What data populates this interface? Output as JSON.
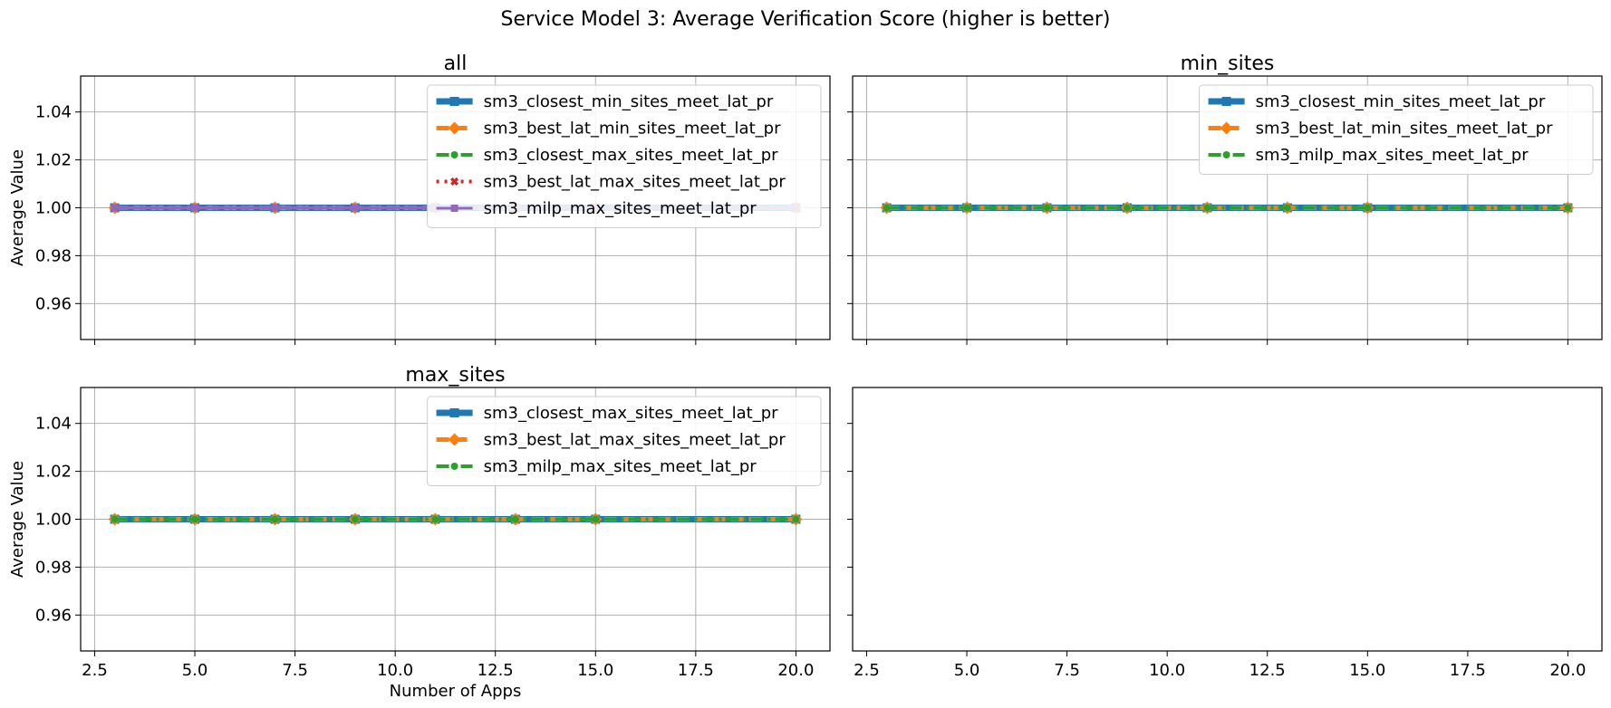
{
  "figure": {
    "title": "Service Model 3: Average Verification Score (higher is better)"
  },
  "colors": {
    "blue": "#1f77b4",
    "orange": "#ff7f0e",
    "green": "#2ca02c",
    "red": "#d62728",
    "purple": "#9467bd",
    "grid": "#b0b0b0"
  },
  "chart_data": [
    {
      "type": "line",
      "title": "all",
      "xlabel": "",
      "ylabel": "Average Value",
      "xlim": [
        2.15,
        20.85
      ],
      "ylim": [
        0.945,
        1.055
      ],
      "xticks": [
        2.5,
        5.0,
        7.5,
        10.0,
        12.5,
        15.0,
        17.5,
        20.0
      ],
      "xtick_labels": [
        "2.5",
        "5.0",
        "7.5",
        "10.0",
        "12.5",
        "15.0",
        "17.5",
        "20.0"
      ],
      "show_xtick_labels": false,
      "yticks": [
        0.96,
        0.98,
        1.0,
        1.02,
        1.04
      ],
      "ytick_labels": [
        "0.96",
        "0.98",
        "1.00",
        "1.02",
        "1.04"
      ],
      "show_ytick_labels": true,
      "grid": true,
      "legend_position": "upper-right",
      "x": [
        3,
        5,
        7,
        9,
        11,
        13,
        15,
        20
      ],
      "series": [
        {
          "name": "sm3_closest_min_sites_meet_lat_pr",
          "color": "#1f77b4",
          "marker": "square",
          "linestyle": "solid",
          "values": [
            1,
            1,
            1,
            1,
            1,
            1,
            1,
            1
          ]
        },
        {
          "name": "sm3_best_lat_min_sites_meet_lat_pr",
          "color": "#ff7f0e",
          "marker": "diamond",
          "linestyle": "dashed",
          "values": [
            1,
            1,
            1,
            1,
            1,
            1,
            1,
            1
          ]
        },
        {
          "name": "sm3_closest_max_sites_meet_lat_pr",
          "color": "#2ca02c",
          "marker": "circle",
          "linestyle": "dashdot",
          "values": [
            1,
            1,
            1,
            1,
            1,
            1,
            1,
            1
          ]
        },
        {
          "name": "sm3_best_lat_max_sites_meet_lat_pr",
          "color": "#d62728",
          "marker": "x",
          "linestyle": "dotted",
          "values": [
            1,
            1,
            1,
            1,
            1,
            1,
            1,
            1
          ]
        },
        {
          "name": "sm3_milp_max_sites_meet_lat_pr",
          "color": "#9467bd",
          "marker": "square",
          "linestyle": "solid",
          "values": [
            1,
            1,
            1,
            1,
            1,
            1,
            1,
            1
          ]
        }
      ]
    },
    {
      "type": "line",
      "title": "min_sites",
      "xlabel": "",
      "ylabel": "",
      "xlim": [
        2.15,
        20.85
      ],
      "ylim": [
        0.945,
        1.055
      ],
      "xticks": [
        2.5,
        5.0,
        7.5,
        10.0,
        12.5,
        15.0,
        17.5,
        20.0
      ],
      "xtick_labels": [
        "2.5",
        "5.0",
        "7.5",
        "10.0",
        "12.5",
        "15.0",
        "17.5",
        "20.0"
      ],
      "show_xtick_labels": false,
      "yticks": [
        0.96,
        0.98,
        1.0,
        1.02,
        1.04
      ],
      "ytick_labels": [
        "0.96",
        "0.98",
        "1.00",
        "1.02",
        "1.04"
      ],
      "show_ytick_labels": false,
      "grid": true,
      "legend_position": "upper-right",
      "x": [
        3,
        5,
        7,
        9,
        11,
        13,
        15,
        20
      ],
      "series": [
        {
          "name": "sm3_closest_min_sites_meet_lat_pr",
          "color": "#1f77b4",
          "marker": "square",
          "linestyle": "solid",
          "values": [
            1,
            1,
            1,
            1,
            1,
            1,
            1,
            1
          ]
        },
        {
          "name": "sm3_best_lat_min_sites_meet_lat_pr",
          "color": "#ff7f0e",
          "marker": "diamond",
          "linestyle": "dashed",
          "values": [
            1,
            1,
            1,
            1,
            1,
            1,
            1,
            1
          ]
        },
        {
          "name": "sm3_milp_max_sites_meet_lat_pr",
          "color": "#2ca02c",
          "marker": "circle",
          "linestyle": "dashdot",
          "values": [
            1,
            1,
            1,
            1,
            1,
            1,
            1,
            1
          ]
        }
      ]
    },
    {
      "type": "line",
      "title": "max_sites",
      "xlabel": "Number of Apps",
      "ylabel": "Average Value",
      "xlim": [
        2.15,
        20.85
      ],
      "ylim": [
        0.945,
        1.055
      ],
      "xticks": [
        2.5,
        5.0,
        7.5,
        10.0,
        12.5,
        15.0,
        17.5,
        20.0
      ],
      "xtick_labels": [
        "2.5",
        "5.0",
        "7.5",
        "10.0",
        "12.5",
        "15.0",
        "17.5",
        "20.0"
      ],
      "show_xtick_labels": true,
      "yticks": [
        0.96,
        0.98,
        1.0,
        1.02,
        1.04
      ],
      "ytick_labels": [
        "0.96",
        "0.98",
        "1.00",
        "1.02",
        "1.04"
      ],
      "show_ytick_labels": true,
      "grid": true,
      "legend_position": "upper-right",
      "x": [
        3,
        5,
        7,
        9,
        11,
        13,
        15,
        20
      ],
      "series": [
        {
          "name": "sm3_closest_max_sites_meet_lat_pr",
          "color": "#1f77b4",
          "marker": "square",
          "linestyle": "solid",
          "values": [
            1,
            1,
            1,
            1,
            1,
            1,
            1,
            1
          ]
        },
        {
          "name": "sm3_best_lat_max_sites_meet_lat_pr",
          "color": "#ff7f0e",
          "marker": "diamond",
          "linestyle": "dashed",
          "values": [
            1,
            1,
            1,
            1,
            1,
            1,
            1,
            1
          ]
        },
        {
          "name": "sm3_milp_max_sites_meet_lat_pr",
          "color": "#2ca02c",
          "marker": "circle",
          "linestyle": "dashdot",
          "values": [
            1,
            1,
            1,
            1,
            1,
            1,
            1,
            1
          ]
        }
      ]
    },
    {
      "type": "line",
      "title": "",
      "xlabel": "",
      "ylabel": "",
      "xlim": [
        2.15,
        20.85
      ],
      "ylim": [
        0.945,
        1.055
      ],
      "xticks": [
        2.5,
        5.0,
        7.5,
        10.0,
        12.5,
        15.0,
        17.5,
        20.0
      ],
      "xtick_labels": [
        "2.5",
        "5.0",
        "7.5",
        "10.0",
        "12.5",
        "15.0",
        "17.5",
        "20.0"
      ],
      "show_xtick_labels": true,
      "yticks": [
        0.96,
        0.98,
        1.0,
        1.02,
        1.04
      ],
      "ytick_labels": [
        "0.96",
        "0.98",
        "1.00",
        "1.02",
        "1.04"
      ],
      "show_ytick_labels": false,
      "grid": false,
      "legend_position": "",
      "x": [],
      "series": []
    }
  ]
}
